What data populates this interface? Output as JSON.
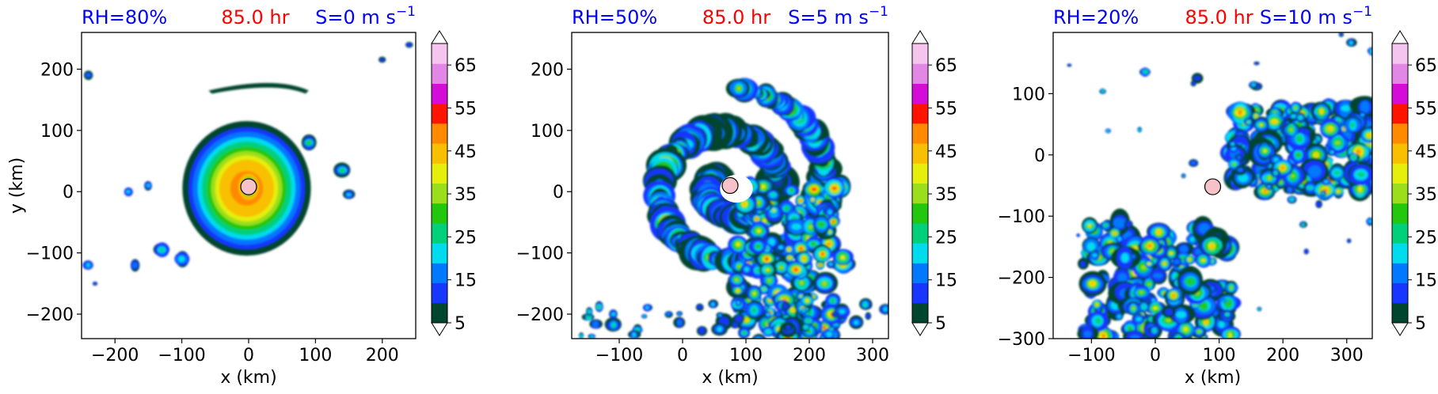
{
  "colorbar": {
    "levels": [
      5,
      10,
      15,
      20,
      25,
      30,
      35,
      40,
      45,
      50,
      55,
      60,
      65,
      70
    ],
    "tick_labels": [
      "5",
      "15",
      "25",
      "35",
      "45",
      "55",
      "65"
    ],
    "colors": [
      "#00452d",
      "#1736ff",
      "#0078ff",
      "#00dbee",
      "#00d07a",
      "#22c80c",
      "#9bdf1c",
      "#e6ee0c",
      "#f8c000",
      "#ff8a00",
      "#ff1400",
      "#d40bd9",
      "#e387e6",
      "#f6c5ef"
    ],
    "extend": "both"
  },
  "panels": [
    {
      "title_left": "RH=80%",
      "title_left_color": "#0000ff",
      "title_center": "85.0 hr",
      "title_center_color": "#ff0000",
      "title_right": "S=0 m s",
      "title_right_sup": "−1",
      "title_right_color": "#0000ff",
      "xlabel": "x (km)",
      "ylabel": "y (km)",
      "xlim": [
        -250,
        250
      ],
      "ylim": [
        -240,
        260
      ],
      "xticks": [
        -200,
        -100,
        0,
        100,
        200
      ],
      "yticks": [
        -200,
        -100,
        0,
        100,
        200
      ],
      "xtick_labels": [
        "−200",
        "−100",
        "0",
        "100",
        "200"
      ],
      "ytick_labels": [
        "−200",
        "−100",
        "0",
        "100",
        "200"
      ],
      "marker": {
        "x": 0,
        "y": 8,
        "color": "#f4c2c8"
      }
    },
    {
      "title_left": "RH=50%",
      "title_left_color": "#0000ff",
      "title_center": "85.0 hr",
      "title_center_color": "#ff0000",
      "title_right": "S=5 m s",
      "title_right_sup": "−1",
      "title_right_color": "#0000ff",
      "xlabel": "x (km)",
      "ylabel": "",
      "xlim": [
        -175,
        325
      ],
      "ylim": [
        -240,
        260
      ],
      "xticks": [
        -100,
        0,
        100,
        200,
        300
      ],
      "yticks": [
        -200,
        -100,
        0,
        100,
        200
      ],
      "xtick_labels": [
        "−100",
        "0",
        "100",
        "200",
        "300"
      ],
      "ytick_labels": [
        "−200",
        "−100",
        "0",
        "100",
        "200"
      ],
      "marker": {
        "x": 75,
        "y": 10,
        "color": "#f4c2c8"
      }
    },
    {
      "title_left": "RH=20%",
      "title_left_color": "#0000ff",
      "title_center": "85.0 hr",
      "title_center_color": "#ff0000",
      "title_right": "S=10 m s",
      "title_right_sup": "−1",
      "title_right_color": "#0000ff",
      "xlabel": "x (km)",
      "ylabel": "",
      "xlim": [
        -160,
        340
      ],
      "ylim": [
        -300,
        200
      ],
      "xticks": [
        -100,
        0,
        100,
        200,
        300
      ],
      "yticks": [
        -300,
        -200,
        -100,
        0,
        100
      ],
      "xtick_labels": [
        "−100",
        "0",
        "100",
        "200",
        "300"
      ],
      "ytick_labels": [
        "−300",
        "−200",
        "−100",
        "0",
        "100"
      ],
      "marker": {
        "x": 90,
        "y": -52,
        "color": "#f4c2c8"
      }
    }
  ],
  "chart_data": [
    {
      "type": "heatmap",
      "title": "RH=80%   85.0 hr   S=0 m s⁻¹",
      "xlabel": "x (km)",
      "ylabel": "y (km)",
      "xlim": [
        -250,
        250
      ],
      "ylim": [
        -240,
        260
      ],
      "colorbar_range": [
        5,
        70
      ],
      "storm_center": [
        0,
        8
      ]
    },
    {
      "type": "heatmap",
      "title": "RH=50%   85.0 hr   S=5 m s⁻¹",
      "xlabel": "x (km)",
      "ylabel": "",
      "xlim": [
        -175,
        325
      ],
      "ylim": [
        -240,
        260
      ],
      "colorbar_range": [
        5,
        70
      ],
      "storm_center": [
        75,
        10
      ]
    },
    {
      "type": "heatmap",
      "title": "RH=20%   85.0 hr   S=10 m s⁻¹",
      "xlabel": "x (km)",
      "ylabel": "",
      "xlim": [
        -160,
        340
      ],
      "ylim": [
        -300,
        200
      ],
      "colorbar_range": [
        5,
        70
      ],
      "storm_center": [
        90,
        -52
      ]
    }
  ]
}
